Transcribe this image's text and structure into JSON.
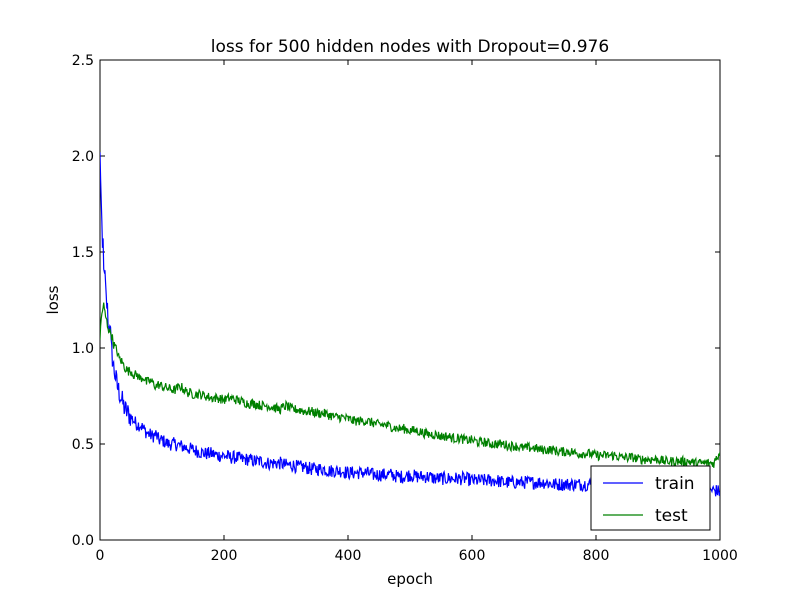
{
  "chart_data": {
    "type": "line",
    "title": "loss for 500 hidden nodes with Dropout=0.976",
    "xlabel": "epoch",
    "ylabel": "loss",
    "xlim": [
      0,
      1000
    ],
    "ylim": [
      0,
      2.5
    ],
    "xticks": [
      0,
      200,
      400,
      600,
      800,
      1000
    ],
    "yticks": [
      0.0,
      0.5,
      1.0,
      1.5,
      2.0,
      2.5
    ],
    "ytick_labels": [
      "0.0",
      "0.5",
      "1.0",
      "1.5",
      "2.0",
      "2.5"
    ],
    "grid": false,
    "legend_position": "lower-right",
    "series": [
      {
        "name": "train",
        "color": "#0000ff",
        "x": [
          0,
          1,
          2,
          3,
          4,
          5,
          6,
          7,
          8,
          9,
          10,
          12,
          14,
          16,
          18,
          20,
          22,
          25,
          28,
          30,
          33,
          36,
          40,
          45,
          50,
          55,
          60,
          65,
          70,
          75,
          80,
          85,
          90,
          95,
          100,
          110,
          120,
          130,
          140,
          150,
          160,
          170,
          180,
          190,
          200,
          210,
          220,
          230,
          240,
          250,
          260,
          270,
          280,
          290,
          300,
          310,
          320,
          330,
          340,
          350,
          360,
          370,
          380,
          390,
          400,
          410,
          420,
          430,
          440,
          450,
          460,
          470,
          480,
          490,
          500,
          510,
          520,
          530,
          540,
          550,
          560,
          570,
          580,
          590,
          600,
          610,
          620,
          630,
          640,
          650,
          660,
          670,
          680,
          690,
          700,
          710,
          720,
          730,
          740,
          750,
          760,
          770,
          780,
          790,
          800,
          810,
          820,
          830,
          840,
          850,
          860,
          870,
          880,
          890,
          900,
          910,
          920,
          930,
          940,
          950,
          960,
          970,
          980,
          990,
          1000
        ],
        "y": [
          2.0,
          1.9,
          1.75,
          1.6,
          1.5,
          1.55,
          1.45,
          1.35,
          1.38,
          1.3,
          1.25,
          1.2,
          1.1,
          1.15,
          1.0,
          0.95,
          0.9,
          0.85,
          0.8,
          0.78,
          0.75,
          0.72,
          0.68,
          0.66,
          0.64,
          0.62,
          0.6,
          0.6,
          0.58,
          0.56,
          0.55,
          0.54,
          0.55,
          0.52,
          0.52,
          0.5,
          0.5,
          0.49,
          0.48,
          0.47,
          0.46,
          0.45,
          0.45,
          0.44,
          0.44,
          0.43,
          0.43,
          0.42,
          0.42,
          0.41,
          0.41,
          0.4,
          0.4,
          0.4,
          0.39,
          0.39,
          0.38,
          0.38,
          0.37,
          0.37,
          0.37,
          0.36,
          0.36,
          0.36,
          0.35,
          0.35,
          0.35,
          0.35,
          0.34,
          0.34,
          0.34,
          0.34,
          0.33,
          0.33,
          0.34,
          0.33,
          0.33,
          0.33,
          0.32,
          0.32,
          0.32,
          0.32,
          0.32,
          0.32,
          0.31,
          0.31,
          0.31,
          0.31,
          0.31,
          0.3,
          0.3,
          0.3,
          0.3,
          0.3,
          0.3,
          0.3,
          0.3,
          0.29,
          0.29,
          0.29,
          0.29,
          0.29,
          0.29,
          0.29,
          0.28,
          0.28,
          0.28,
          0.28,
          0.28,
          0.28,
          0.28,
          0.27,
          0.27,
          0.27,
          0.27,
          0.27,
          0.27,
          0.27,
          0.27,
          0.26,
          0.26,
          0.26,
          0.26,
          0.26,
          0.25
        ]
      },
      {
        "name": "test",
        "color": "#008000",
        "x": [
          0,
          2,
          4,
          6,
          8,
          10,
          12,
          14,
          16,
          18,
          20,
          22,
          25,
          28,
          30,
          35,
          40,
          45,
          50,
          55,
          60,
          65,
          70,
          75,
          80,
          85,
          90,
          95,
          100,
          110,
          120,
          130,
          140,
          150,
          160,
          170,
          180,
          190,
          200,
          210,
          220,
          230,
          240,
          250,
          260,
          270,
          280,
          290,
          300,
          310,
          320,
          330,
          340,
          350,
          360,
          370,
          380,
          390,
          400,
          410,
          420,
          430,
          440,
          450,
          460,
          470,
          480,
          490,
          500,
          510,
          520,
          530,
          540,
          550,
          560,
          570,
          580,
          590,
          600,
          610,
          620,
          630,
          640,
          650,
          660,
          670,
          680,
          690,
          700,
          710,
          720,
          730,
          740,
          750,
          760,
          770,
          780,
          790,
          800,
          810,
          820,
          830,
          840,
          850,
          860,
          870,
          880,
          890,
          900,
          910,
          920,
          930,
          940,
          950,
          960,
          970,
          980,
          990,
          1000
        ],
        "y": [
          1.05,
          1.15,
          1.2,
          1.22,
          1.18,
          1.15,
          1.12,
          1.1,
          1.08,
          1.08,
          1.05,
          1.02,
          1.0,
          0.98,
          0.95,
          0.93,
          0.9,
          0.88,
          0.88,
          0.86,
          0.86,
          0.84,
          0.85,
          0.82,
          0.83,
          0.82,
          0.8,
          0.81,
          0.8,
          0.79,
          0.78,
          0.8,
          0.77,
          0.76,
          0.76,
          0.75,
          0.74,
          0.74,
          0.73,
          0.74,
          0.73,
          0.72,
          0.71,
          0.71,
          0.7,
          0.7,
          0.69,
          0.68,
          0.7,
          0.68,
          0.68,
          0.67,
          0.67,
          0.66,
          0.66,
          0.65,
          0.64,
          0.64,
          0.63,
          0.62,
          0.62,
          0.62,
          0.61,
          0.6,
          0.6,
          0.59,
          0.58,
          0.58,
          0.57,
          0.57,
          0.56,
          0.55,
          0.55,
          0.54,
          0.54,
          0.53,
          0.53,
          0.52,
          0.52,
          0.51,
          0.51,
          0.5,
          0.5,
          0.5,
          0.49,
          0.49,
          0.48,
          0.48,
          0.48,
          0.47,
          0.47,
          0.47,
          0.46,
          0.46,
          0.46,
          0.45,
          0.45,
          0.45,
          0.44,
          0.44,
          0.44,
          0.44,
          0.43,
          0.43,
          0.43,
          0.42,
          0.42,
          0.42,
          0.42,
          0.41,
          0.41,
          0.41,
          0.41,
          0.41,
          0.4,
          0.4,
          0.4,
          0.4,
          0.46
        ]
      }
    ]
  }
}
